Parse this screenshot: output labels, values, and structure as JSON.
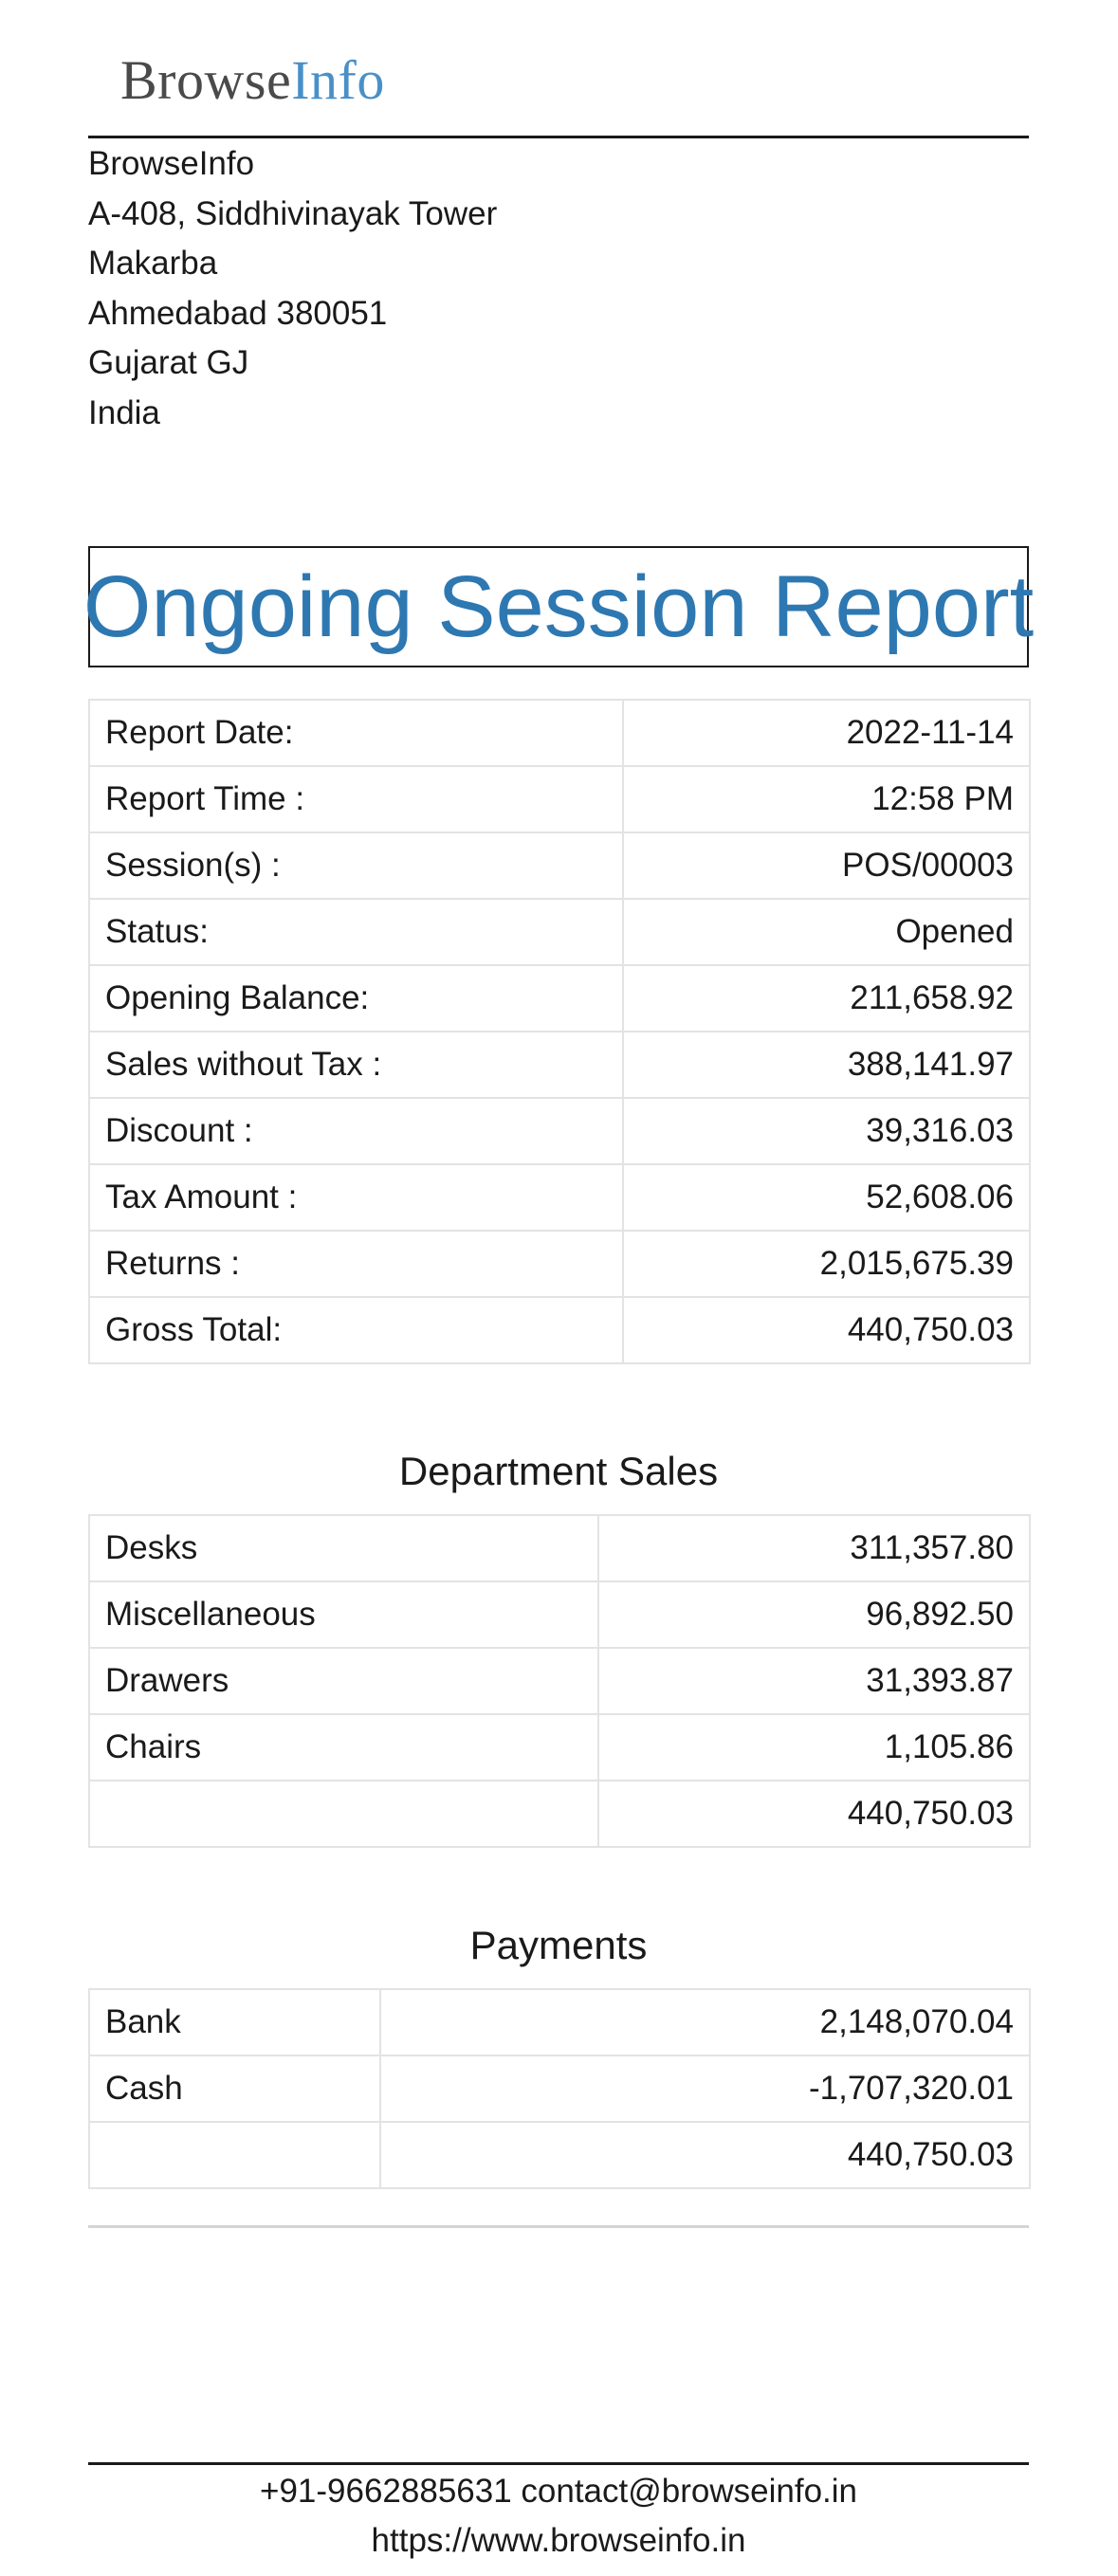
{
  "header": {
    "logo_part_a": "Browse",
    "logo_part_b": "Info",
    "address": [
      "BrowseInfo",
      "A-408, Siddhivinayak Tower",
      "Makarba",
      "Ahmedabad 380051",
      "Gujarat GJ",
      "India"
    ]
  },
  "report": {
    "title": "Ongoing Session Report",
    "summary": [
      {
        "label": "Report Date:",
        "value": "2022-11-14"
      },
      {
        "label": "Report Time :",
        "value": "12:58 PM"
      },
      {
        "label": "Session(s) :",
        "value": "POS/00003"
      },
      {
        "label": "Status:",
        "value": "Opened"
      },
      {
        "label": "Opening Balance:",
        "value": "211,658.92"
      },
      {
        "label": "Sales without Tax :",
        "value": "388,141.97"
      },
      {
        "label": "Discount :",
        "value": "39,316.03"
      },
      {
        "label": "Tax Amount :",
        "value": "52,608.06"
      },
      {
        "label": "Returns :",
        "value": "2,015,675.39"
      },
      {
        "label": "Gross Total:",
        "value": "440,750.03"
      }
    ]
  },
  "department_sales": {
    "title": "Department Sales",
    "rows": [
      {
        "label": "Desks",
        "value": "311,357.80"
      },
      {
        "label": "Miscellaneous",
        "value": "96,892.50"
      },
      {
        "label": "Drawers",
        "value": "31,393.87"
      },
      {
        "label": "Chairs",
        "value": "1,105.86"
      },
      {
        "label": "",
        "value": "440,750.03"
      }
    ]
  },
  "payments": {
    "title": "Payments",
    "rows": [
      {
        "label": "Bank",
        "value": "2,148,070.04"
      },
      {
        "label": "Cash",
        "value": "-1,707,320.01"
      },
      {
        "label": "",
        "value": "440,750.03"
      }
    ]
  },
  "footer": {
    "contact": "+91-9662885631 contact@browseinfo.in",
    "website": "https://www.browseinfo.in"
  }
}
